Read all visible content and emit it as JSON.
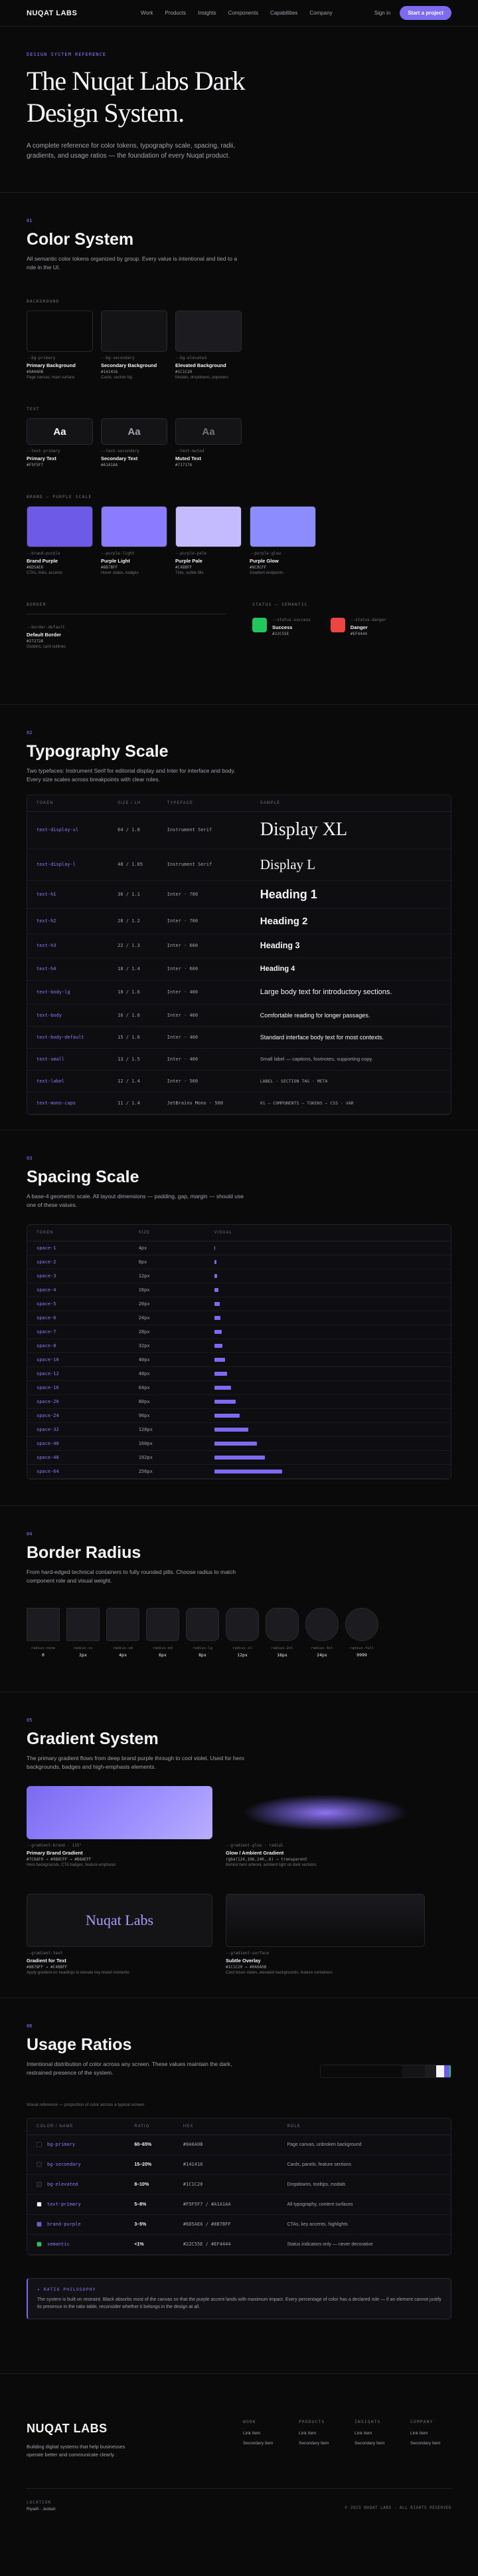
{
  "nav": {
    "logo": "NUQAT LABS",
    "links": [
      "Work",
      "Products",
      "Insights",
      "Components",
      "Capabilities",
      "Company"
    ],
    "signin": "Sign in",
    "cta": "Start a project"
  },
  "hero": {
    "eyebrow": "DESIGN SYSTEM REFERENCE",
    "title": "The Nuqat Labs Dark Design System.",
    "text": "A complete reference for color tokens, typography scale, spacing, radii, gradients, and usage ratios — the foundation of every Nuqat product."
  },
  "colors": {
    "number": "01",
    "title": "Color System",
    "desc": "All semantic color tokens organized by group. Every value is intentional and tied to a role in the UI.",
    "groups": [
      {
        "label": "BACKGROUND",
        "swatches": [
          {
            "token": "--bg-primary",
            "name": "Primary Background",
            "hex": "#0A0A0B",
            "note": "Page canvas, main surface"
          },
          {
            "token": "--bg-secondary",
            "name": "Secondary Background",
            "hex": "#141416",
            "note": "Cards, section bg"
          },
          {
            "token": "--bg-elevated",
            "name": "Elevated Background",
            "hex": "#1C1C20",
            "note": "Modals, dropdowns, popovers"
          }
        ]
      },
      {
        "label": "TEXT",
        "sample": "Aa",
        "swatches": [
          {
            "token": "--text-primary",
            "name": "Primary Text",
            "hex": "#F5F5F7"
          },
          {
            "token": "--text-secondary",
            "name": "Secondary Text",
            "hex": "#A1A1AA"
          },
          {
            "token": "--text-muted",
            "name": "Muted Text",
            "hex": "#71717A"
          }
        ]
      },
      {
        "label": "BRAND — PURPLE SCALE",
        "swatches": [
          {
            "token": "--brand-purple",
            "name": "Brand Purple",
            "hex": "#6D5AE6",
            "note": "CTAs, links, accents"
          },
          {
            "token": "--purple-light",
            "name": "Purple Light",
            "hex": "#8B7BFF",
            "note": "Hover states, badges"
          },
          {
            "token": "--purple-pale",
            "name": "Purple Pale",
            "hex": "#C4BBFF",
            "note": "Tints, subtle fills"
          },
          {
            "token": "--purple-glow",
            "name": "Purple Glow",
            "hex": "#8C8CFF",
            "note": "Gradient endpoints"
          }
        ]
      },
      {
        "label": "BORDER",
        "swatches": [
          {
            "token": "--border-default",
            "name": "Default Border",
            "hex": "#27272A",
            "note": "Dividers, card outlines"
          }
        ]
      },
      {
        "label": "STATUS — SEMANTIC",
        "swatches": [
          {
            "token": "--status-success",
            "name": "Success",
            "hex": "#22C55E"
          },
          {
            "token": "--status-danger",
            "name": "Danger",
            "hex": "#EF4444"
          }
        ]
      }
    ]
  },
  "typography": {
    "number": "02",
    "title": "Typography Scale",
    "desc": "Two typefaces: Instrument Serif for editorial display and Inter for interface and body. Every size scales across breakpoints with clear roles.",
    "headers": [
      "TOKEN",
      "SIZE / LH",
      "TYPEFACE",
      "SAMPLE"
    ],
    "rows": [
      [
        "text-display-xl",
        "64 / 1.0",
        "Instrument Serif",
        "Display XL"
      ],
      [
        "text-display-l",
        "48 / 1.05",
        "Instrument Serif",
        "Display L"
      ],
      [
        "text-h1",
        "36 / 1.1",
        "Inter · 700",
        "Heading 1"
      ],
      [
        "text-h2",
        "28 / 1.2",
        "Inter · 700",
        "Heading 2"
      ],
      [
        "text-h3",
        "22 / 1.3",
        "Inter · 600",
        "Heading 3"
      ],
      [
        "text-h4",
        "18 / 1.4",
        "Inter · 600",
        "Heading 4"
      ],
      [
        "text-body-lg",
        "18 / 1.6",
        "Inter · 400",
        "Large body text for introductory sections."
      ],
      [
        "text-body",
        "16 / 1.6",
        "Inter · 400",
        "Comfortable reading for longer passages."
      ],
      [
        "text-body-default",
        "15 / 1.6",
        "Inter · 400",
        "Standard interface body text for most contexts."
      ],
      [
        "text-small",
        "13 / 1.5",
        "Inter · 400",
        "Small label — captions, footnotes, supporting copy."
      ],
      [
        "text-label",
        "12 / 1.4",
        "Inter · 500",
        "LABEL · SECTION TAG · META"
      ],
      [
        "text-mono-caps",
        "11 / 1.4",
        "JetBrains Mono · 500",
        "01 — COMPONENTS — TOKENS — CSS · VAR"
      ]
    ]
  },
  "spacing": {
    "number": "03",
    "title": "Spacing Scale",
    "desc": "A base-4 geometric scale. All layout dimensions — padding, gap, margin — should use one of these values.",
    "headers": [
      "TOKEN",
      "SIZE",
      "VISUAL"
    ],
    "rows": [
      {
        "token": "space-1",
        "value": 4,
        "label": "4px"
      },
      {
        "token": "space-2",
        "value": 8,
        "label": "8px"
      },
      {
        "token": "space-3",
        "value": 12,
        "label": "12px"
      },
      {
        "token": "space-4",
        "value": 16,
        "label": "16px"
      },
      {
        "token": "space-5",
        "value": 20,
        "label": "20px"
      },
      {
        "token": "space-6",
        "value": 24,
        "label": "24px"
      },
      {
        "token": "space-7",
        "value": 28,
        "label": "28px"
      },
      {
        "token": "space-8",
        "value": 32,
        "label": "32px"
      },
      {
        "token": "space-10",
        "value": 40,
        "label": "40px"
      },
      {
        "token": "space-12",
        "value": 48,
        "label": "48px"
      },
      {
        "token": "space-16",
        "value": 64,
        "label": "64px"
      },
      {
        "token": "space-20",
        "value": 80,
        "label": "80px"
      },
      {
        "token": "space-24",
        "value": 96,
        "label": "96px"
      },
      {
        "token": "space-32",
        "value": 128,
        "label": "128px"
      },
      {
        "token": "space-40",
        "value": 160,
        "label": "160px"
      },
      {
        "token": "space-48",
        "value": 192,
        "label": "192px"
      },
      {
        "token": "space-64",
        "value": 256,
        "label": "256px"
      }
    ]
  },
  "radius": {
    "number": "04",
    "title": "Border Radius",
    "desc": "From hard-edged technical containers to fully rounded pills. Choose radius to match component role and visual weight.",
    "items": [
      {
        "token": "radius-none",
        "value": 0
      },
      {
        "token": "radius-xs",
        "value": 2,
        "label": "2px"
      },
      {
        "token": "radius-sm",
        "value": 4,
        "label": "4px"
      },
      {
        "token": "radius-md",
        "value": 6,
        "label": "6px"
      },
      {
        "token": "radius-lg",
        "value": 8,
        "label": "8px"
      },
      {
        "token": "radius-xl",
        "value": 12,
        "label": "12px"
      },
      {
        "token": "radius-2xl",
        "value": 16,
        "label": "16px"
      },
      {
        "token": "radius-3xl",
        "value": 24,
        "label": "24px"
      },
      {
        "token": "radius-full",
        "value": 9999,
        "label": "9999"
      }
    ]
  },
  "gradients": {
    "number": "05",
    "title": "Gradient System",
    "desc": "The primary gradient flows from deep brand purple through to cool violet. Used for hero backgrounds, badges and high-emphasis elements.",
    "cards": [
      {
        "token": "--gradient-brand · 135°",
        "name": "Primary Brand Gradient",
        "stops": "#7C6AF0 → #9B8CFF → #B8AEFF",
        "note": "Hero backgrounds, CTA badges, feature emphasis"
      },
      {
        "token": "--gradient-glow · radial",
        "name": "Glow / Ambient Gradient",
        "stops": "rgba(124,106,240,.6) → transparent",
        "note": "Behind hero artwork, ambient light on dark sections"
      },
      {
        "token": "--gradient-text",
        "name": "Gradient for Text",
        "sample": "Nuqat Labs",
        "stops": "#8B7BFF → #C4BBFF",
        "note": "Apply gradient on headings to elevate key brand moments"
      },
      {
        "token": "--gradient-surface",
        "name": "Subtle Overlay",
        "stops": "#1C1C20 → #0A0A0B",
        "note": "Card hover states, elevated backgrounds, feature containers"
      }
    ]
  },
  "usage": {
    "number": "06",
    "title": "Usage Ratios",
    "desc": "Intentional distribution of color across any screen. These values maintain the dark, restrained presence of the system.",
    "bar": {
      "values": [
        62,
        18,
        9,
        6,
        4,
        1
      ],
      "colors": [
        "#0A0A0B",
        "#141416",
        "#1C1C20",
        "#F5F5F7",
        "#6D5AE6",
        "#22C55E"
      ]
    },
    "caption": "Visual reference — proportion of color across a typical screen",
    "headers": [
      "COLOR / NAME",
      "RATIO",
      "HEX",
      "ROLE"
    ],
    "rows": [
      [
        "bg-primary",
        "60–65%",
        "#0A0A0B",
        "Page canvas, unbroken background"
      ],
      [
        "bg-secondary",
        "15–20%",
        "#141416",
        "Cards, panels, feature sections"
      ],
      [
        "bg-elevated",
        "8–10%",
        "#1C1C20",
        "Dropdowns, tooltips, modals"
      ],
      [
        "text-primary",
        "5–8%",
        "#F5F5F7 / #A1A1AA",
        "All typography, content surfaces"
      ],
      [
        "brand-purple",
        "3–5%",
        "#6D5AE6 / #8B7BFF",
        "CTAs, key accents, highlights"
      ],
      [
        "semantic",
        "<1%",
        "#22C55E / #EF4444",
        "Status indicators only — never decorative"
      ]
    ],
    "note_title": "✦ RATIO PHILOSOPHY",
    "note": "The system is built on restraint. Black absorbs most of the canvas so that the purple accent lands with maximum impact. Every percentage of color has a declared role — if an element cannot justify its presence in the ratio table, reconsider whether it belongs in the design at all."
  },
  "footer": {
    "logo": "NUQAT LABS",
    "tagline": "Building digital systems that help businesses operate better and communicate clearly.",
    "columns": [
      {
        "heading": "WORK",
        "links": [
          "Link Item",
          "Secondary Item"
        ]
      },
      {
        "heading": "PRODUCTS",
        "links": [
          "Link Item",
          "Secondary Item"
        ]
      },
      {
        "heading": "INSIGHTS",
        "links": [
          "Link Item",
          "Secondary Item"
        ]
      },
      {
        "heading": "COMPANY",
        "links": [
          "Link Item",
          "Secondary Item"
        ]
      }
    ],
    "location_label": "LOCATION",
    "location": "Riyadh · Jeddah",
    "copyright": "© 2025 NUQAT LABS · ALL RIGHTS RESERVED"
  }
}
